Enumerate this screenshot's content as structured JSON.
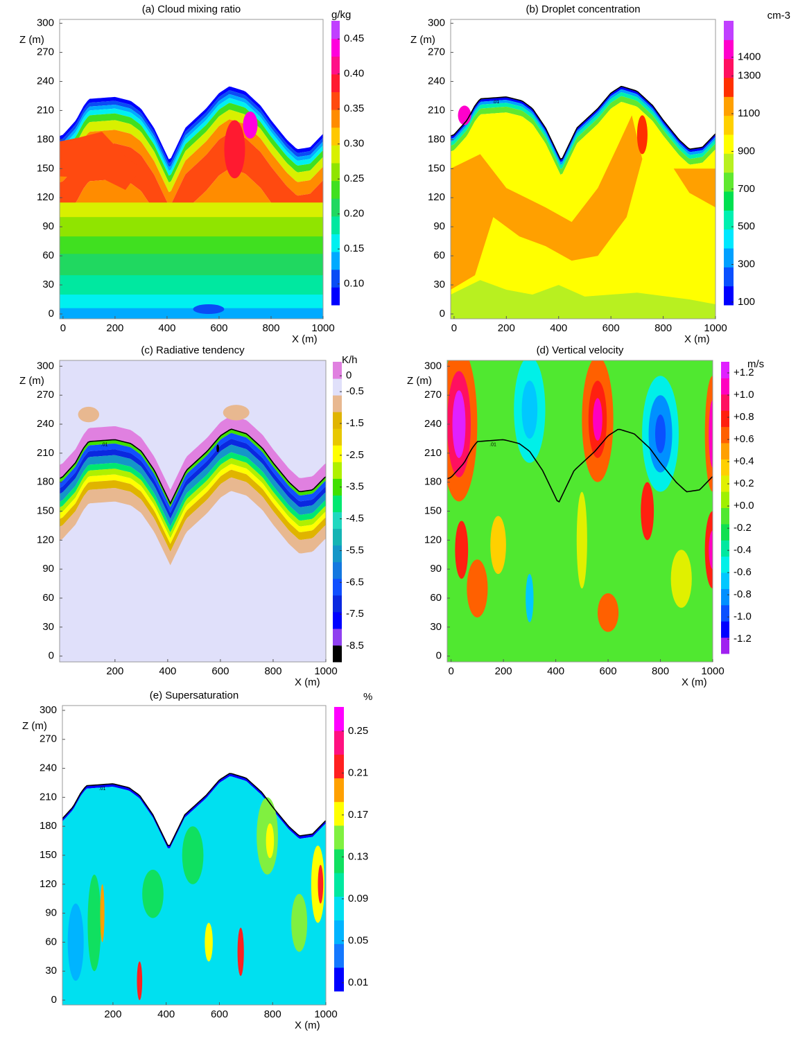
{
  "chart_data": [
    {
      "type": "contour",
      "title": "(a) Cloud mixing ratio",
      "xlabel": "X (m)",
      "ylabel": "Z (m)",
      "xlim": [
        -13,
        1000
      ],
      "ylim": [
        -5,
        304
      ],
      "xticks": [
        0,
        200,
        400,
        600,
        800,
        1000
      ],
      "yticks": [
        0,
        30,
        60,
        90,
        120,
        150,
        180,
        210,
        240,
        270,
        300
      ],
      "colorbar": {
        "unit": "g/kg",
        "clim": [
          0.07,
          0.476
        ],
        "ticks": [
          {
            "value": 0.1,
            "label": "0.10"
          },
          0.15,
          {
            "value": 0.2,
            "label": "0.20"
          },
          0.25,
          {
            "value": 0.3,
            "label": "0.30"
          },
          0.35,
          {
            "value": 0.4,
            "label": "0.40"
          },
          0.45
        ],
        "colors": [
          "#0000ff",
          "#0a4cf5",
          "#00aaff",
          "#00f0f0",
          "#00e8a0",
          "#20d860",
          "#40e020",
          "#90e400",
          "#d8f000",
          "#ffc800",
          "#ff8c00",
          "#ff4a10",
          "#ff1a30",
          "#ff1088",
          "#ff00dd",
          "#c040ff"
        ]
      }
    },
    {
      "type": "contour",
      "title": "(b) Droplet concentration",
      "xlabel": "X (m)",
      "ylabel": "Z (m)",
      "xlim": [
        -13,
        1000
      ],
      "ylim": [
        -5,
        304
      ],
      "xticks": [
        0,
        200,
        400,
        600,
        800,
        1000
      ],
      "yticks": [
        0,
        30,
        60,
        90,
        120,
        150,
        180,
        210,
        240,
        270,
        300
      ],
      "contour_label": ".01",
      "colorbar": {
        "unit": "cm-3",
        "clim": [
          85,
          1593
        ],
        "ticks": [
          100,
          300,
          500,
          700,
          900,
          1100,
          1300,
          1400
        ],
        "colors": [
          "#0000ff",
          "#0a50ff",
          "#00a0ff",
          "#00e8ff",
          "#00f0b0",
          "#00e050",
          "#60e830",
          "#b8f020",
          "#ffff00",
          "#ffd000",
          "#ffa000",
          "#ff3000",
          "#ff1060",
          "#ff00cc",
          "#c040ff"
        ]
      }
    },
    {
      "type": "contour",
      "title": "(c) Radiative tendency",
      "xlabel": "X (m)",
      "ylabel": "Z (m)",
      "xlim": [
        -10,
        1000
      ],
      "ylim": [
        -6,
        306
      ],
      "xticks": [
        200,
        400,
        600,
        800,
        1000
      ],
      "yticks": [
        0,
        30,
        60,
        90,
        120,
        150,
        180,
        210,
        240,
        270,
        300
      ],
      "contour_label": ".01",
      "colorbar": {
        "unit": "K/h",
        "clim": [
          -9.0,
          0.44
        ],
        "ticks": [
          0,
          -0.5,
          -1.5,
          -2.5,
          -3.5,
          -4.5,
          -5.5,
          -6.5,
          -7.5,
          -8.5
        ],
        "colors": [
          "#000000",
          "#9040f0",
          "#0000ff",
          "#0a28e0",
          "#1050ff",
          "#1478e0",
          "#1496c8",
          "#14b4b4",
          "#20d8c0",
          "#00e870",
          "#40e000",
          "#b0f000",
          "#ffff00",
          "#e8c800",
          "#e0b400",
          "#e8b890",
          "#e0e0fa",
          "#e080e0"
        ]
      }
    },
    {
      "type": "contour",
      "title": "(d) Vertical velocity",
      "xlabel": "X (m)",
      "ylabel": "Z (m)",
      "xlim": [
        -15,
        1000
      ],
      "ylim": [
        -6,
        306
      ],
      "xticks": [
        0,
        200,
        400,
        600,
        800,
        1000
      ],
      "yticks": [
        0,
        30,
        60,
        90,
        120,
        150,
        180,
        210,
        240,
        270,
        300
      ],
      "contour_label": ".01",
      "colorbar": {
        "unit": "m/s",
        "clim": [
          -1.33,
          1.3
        ],
        "ticks": [
          {
            "value": 1.2,
            "label": "+1.2"
          },
          {
            "value": 1.0,
            "label": "+1.0"
          },
          {
            "value": 0.8,
            "label": "+0.8"
          },
          {
            "value": 0.6,
            "label": "+0.6"
          },
          {
            "value": 0.4,
            "label": "+0.4"
          },
          {
            "value": 0.2,
            "label": "+0.2"
          },
          {
            "value": 0,
            "label": "+0.0"
          },
          -0.2,
          -0.4,
          -0.6,
          -0.8,
          {
            "value": -1.0,
            "label": "-1.0"
          },
          -1.2
        ],
        "colors": [
          "#a020f0",
          "#0000ff",
          "#0a50ff",
          "#0090ff",
          "#00c8ff",
          "#00f0e8",
          "#00e8a0",
          "#10e050",
          "#50e830",
          "#a0f000",
          "#e0f000",
          "#ffd000",
          "#ffa000",
          "#ff6000",
          "#ff2010",
          "#ff1060",
          "#ff00c0",
          "#e020ff"
        ]
      }
    },
    {
      "type": "contour",
      "title": "(e) Supersaturation",
      "xlabel": "X (m)",
      "ylabel": "Z (m)",
      "xlim": [
        10,
        1000
      ],
      "ylim": [
        -5,
        305
      ],
      "xticks": [
        200,
        400,
        600,
        800,
        1000
      ],
      "yticks": [
        0,
        30,
        60,
        90,
        120,
        150,
        180,
        210,
        240,
        270,
        300
      ],
      "contour_label": ".01",
      "colorbar": {
        "unit": "%",
        "clim": [
          0.002,
          0.273
        ],
        "ticks": [
          0.01,
          0.05,
          0.09,
          0.13,
          0.17,
          0.21,
          0.25
        ],
        "colors": [
          "#0000ff",
          "#1478ff",
          "#00b4ff",
          "#00e0f0",
          "#00e8a0",
          "#10e060",
          "#80f040",
          "#ffff00",
          "#ffa000",
          "#ff2020",
          "#ff1080",
          "#ff00ff"
        ]
      }
    }
  ]
}
